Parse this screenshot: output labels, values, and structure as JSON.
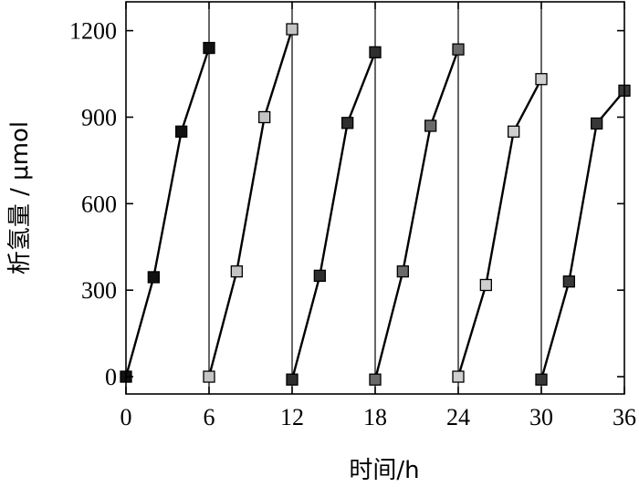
{
  "chart_data": {
    "type": "line",
    "xlabel": "时间/h",
    "ylabel": "析氢量 / μmol",
    "xlim": [
      0,
      36
    ],
    "ylim": [
      -60,
      1300
    ],
    "xticks": [
      0,
      6,
      12,
      18,
      24,
      30,
      36
    ],
    "yticks": [
      0,
      300,
      600,
      900,
      1200
    ],
    "grid": false,
    "cycle_lines_x": [
      6,
      12,
      18,
      24,
      30
    ],
    "series": [
      {
        "color": "#111111",
        "points": [
          [
            0,
            0
          ],
          [
            2,
            345
          ],
          [
            4,
            850
          ],
          [
            6,
            1140
          ]
        ]
      },
      {
        "color": "#c4c4c4",
        "points": [
          [
            6,
            0
          ],
          [
            8,
            365
          ],
          [
            10,
            900
          ],
          [
            12,
            1205
          ]
        ]
      },
      {
        "color": "#2e2e2e",
        "points": [
          [
            12,
            -10
          ],
          [
            14,
            350
          ],
          [
            16,
            880
          ],
          [
            18,
            1125
          ]
        ]
      },
      {
        "color": "#6a6a6a",
        "points": [
          [
            18,
            -10
          ],
          [
            20,
            365
          ],
          [
            22,
            870
          ],
          [
            24,
            1135
          ]
        ]
      },
      {
        "color": "#cfcfcf",
        "points": [
          [
            24,
            0
          ],
          [
            26,
            318
          ],
          [
            28,
            850
          ],
          [
            30,
            1032
          ]
        ]
      },
      {
        "color": "#383838",
        "points": [
          [
            30,
            -10
          ],
          [
            32,
            330
          ],
          [
            34,
            878
          ],
          [
            36,
            992
          ]
        ]
      }
    ]
  }
}
